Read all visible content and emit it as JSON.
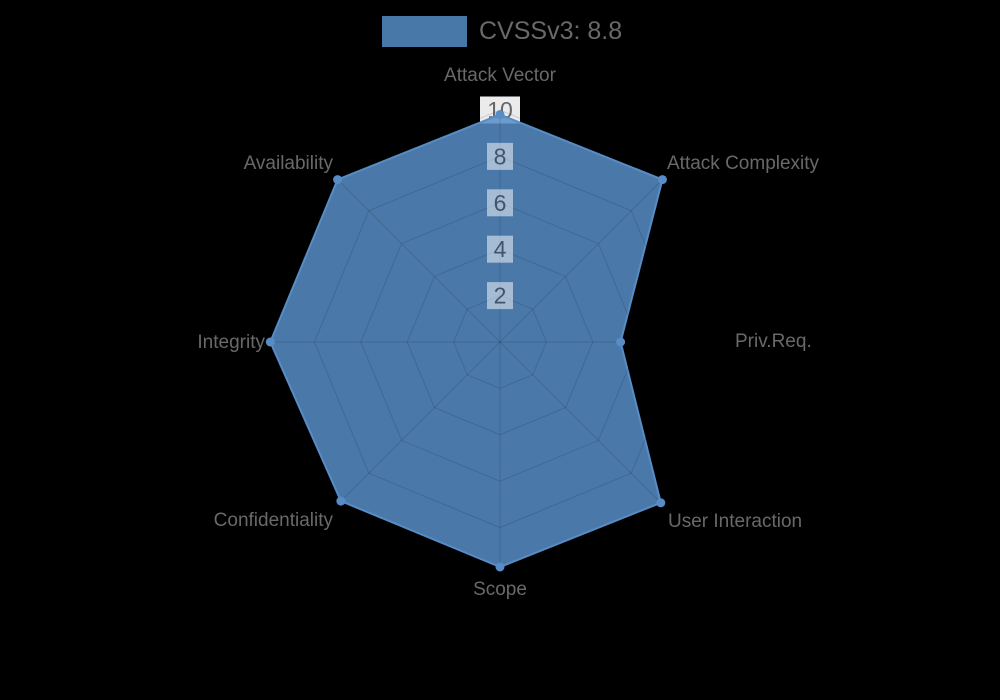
{
  "chart_data": {
    "type": "radar",
    "legend": {
      "label": "CVSSv3: 8.8",
      "swatch_color": "#4878a8",
      "position": "top"
    },
    "axes": [
      "Attack Vector",
      "Attack Complexity",
      "Priv.Req.",
      "User Interaction",
      "Scope",
      "Confidentiality",
      "Integrity",
      "Availability"
    ],
    "series": [
      {
        "name": "CVSSv3: 8.8",
        "values": [
          9.8,
          9.9,
          5.2,
          9.8,
          9.7,
          9.7,
          9.9,
          9.9
        ],
        "fill_color": "rgba(87,141,198,0.85)",
        "marker_color": "#578dc6"
      }
    ],
    "scale": {
      "min": 0,
      "max": 10,
      "tick_values": [
        2,
        4,
        6,
        8,
        10
      ],
      "grid_shape": "octagonal",
      "tick_axis": "Attack Vector"
    },
    "colors": {
      "background": "#000000",
      "grid_line": "rgba(0,0,0,0.13)",
      "axis_label": "#696969",
      "tick_text_outer": "#63676b",
      "tick_text_inner": "#42546a",
      "tick_backdrop_outer": "rgba(255,255,255,0.92)",
      "tick_backdrop_inner": "rgba(255,255,255,0.5)"
    }
  }
}
